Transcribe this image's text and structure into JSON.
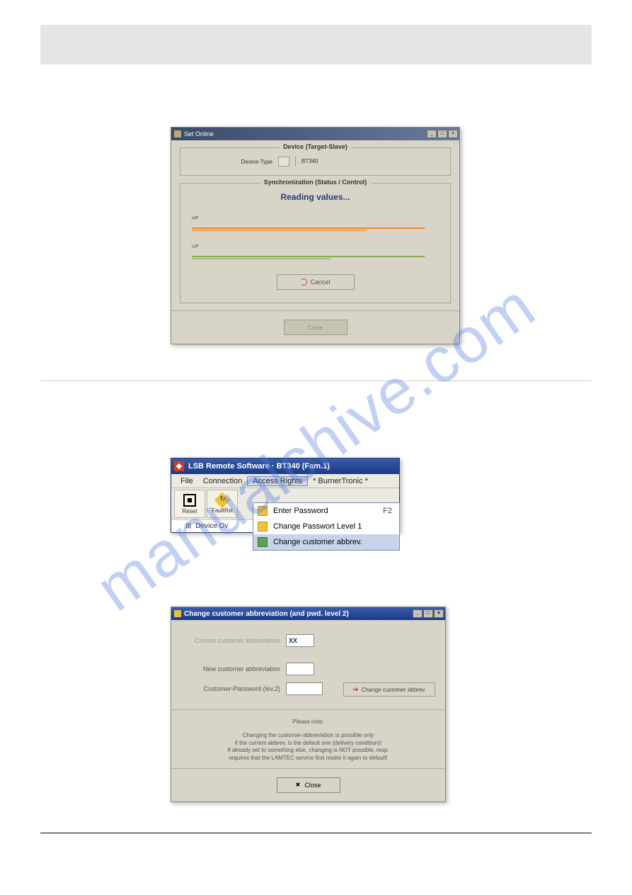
{
  "watermark": "manualchive.com",
  "window1": {
    "title": "Set Online",
    "device": {
      "legend": "Device (Target-Slave)",
      "type_label": "Device-Type",
      "type_value": "BT340"
    },
    "sync": {
      "legend": "Synchronization (Status / Control)",
      "status_text": "Reading values...",
      "rows": [
        {
          "label": "HP",
          "colors": [
            "#e88a2a",
            "#f0a050"
          ]
        },
        {
          "label": "UP",
          "colors": [
            "#8aaa5a",
            "#a5c078"
          ]
        }
      ],
      "cancel_label": "Cancel"
    },
    "close_label": "Close",
    "colors": {
      "bg": "#d8d4c8",
      "status_text": "#2a3a7a"
    }
  },
  "window2": {
    "title": "LSB Remote Software  ·  BT340 (Fam.1)",
    "menu": {
      "items": [
        "File",
        "Connection",
        "Access Rights",
        "* BurnerTronic *"
      ],
      "active_index": 2,
      "dropdown": [
        {
          "label": "Enter Password",
          "shortcut": "F2"
        },
        {
          "label": "Change Passwort Level 1",
          "shortcut": ""
        },
        {
          "label": "Change customer abbrev.",
          "shortcut": "",
          "selected": true
        }
      ]
    },
    "toolbar": [
      {
        "label": "Reset"
      },
      {
        "label": "FaultRst"
      }
    ],
    "subbar": "Device Ov",
    "colors": {
      "titlebar_grad_top": "#3a5aaa",
      "titlebar_grad_bot": "#1a3a8a",
      "logo": "#d04020",
      "dd_sel": "#c8d4ec"
    }
  },
  "window3": {
    "title": "Change customer abbreviation (and pwd. level 2)",
    "current_label": "Current customer abbreviation",
    "current_value": "XX",
    "new_label": "New customer abbreviation",
    "new_value": "",
    "pwd_label": "Customer-Password (lev.2)",
    "pwd_value": "",
    "change_btn": "Change customer abbrev.",
    "note_title": "Please note:",
    "note_body": "Changing the customer-abbreviation is possible only\nif the current abbrev. is the default one (delivery condition)!\nIf already set to something else, changing is NOT possible, resp.\nrequires that the LAMTEC service first resets it again to default!",
    "close_label": "Close"
  }
}
